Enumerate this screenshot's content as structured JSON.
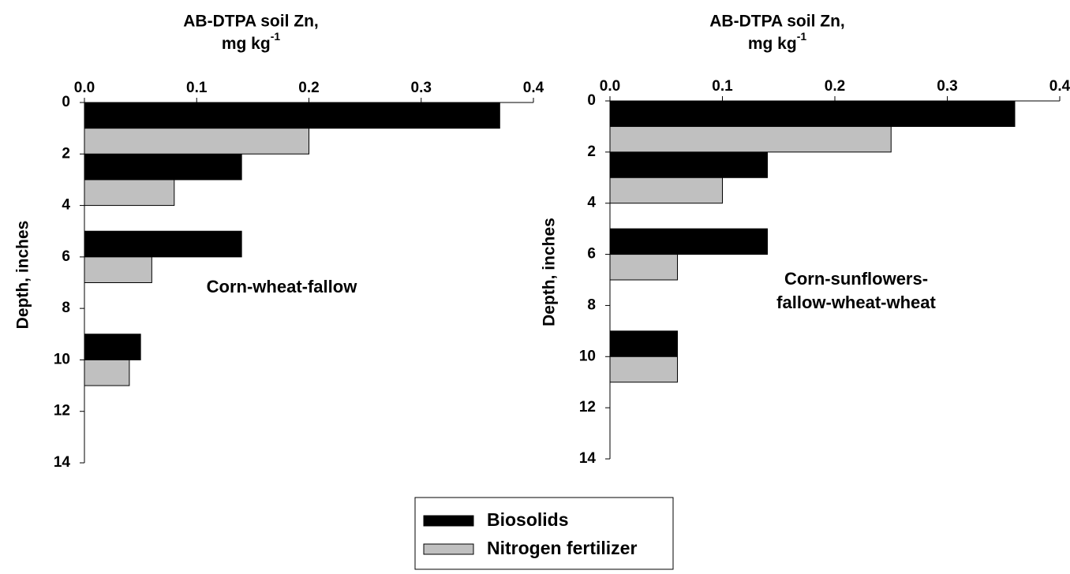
{
  "chart_data": [
    {
      "type": "hbar",
      "xlabel": "AB-DTPA soil Zn,",
      "xlabel_unit": "mg kg",
      "xlabel_unit_sup": "-1",
      "ylabel": "Depth, inches",
      "annotation": [
        "Corn-wheat-fallow"
      ],
      "xlim": [
        0,
        0.4
      ],
      "xticks": [
        {
          "value": 0,
          "label": "0.0"
        },
        0.1,
        0.2,
        0.3,
        0.4
      ],
      "ylim": [
        0,
        14
      ],
      "yticks": [
        0,
        2,
        4,
        6,
        8,
        10,
        12,
        14
      ],
      "y_inverted": true,
      "series": [
        {
          "name": "Biosolids",
          "color": "#000000",
          "y": [
            0.5,
            2.5,
            5.5,
            9.5
          ],
          "values": [
            0.37,
            0.14,
            0.14,
            0.05
          ]
        },
        {
          "name": "Nitrogen fertilizer",
          "color": "#c0c0c0",
          "y": [
            1.5,
            3.5,
            6.5,
            10.5
          ],
          "values": [
            0.2,
            0.08,
            0.06,
            0.04
          ]
        }
      ]
    },
    {
      "type": "hbar",
      "xlabel": "AB-DTPA soil Zn,",
      "xlabel_unit": "mg kg",
      "xlabel_unit_sup": "-1",
      "ylabel": "Depth, inches",
      "annotation": [
        "Corn-sunflowers-",
        "fallow-wheat-wheat"
      ],
      "xlim": [
        0,
        0.4
      ],
      "xticks": [
        {
          "value": 0,
          "label": "0.0"
        },
        0.1,
        0.2,
        0.3,
        0.4
      ],
      "ylim": [
        0,
        14
      ],
      "yticks": [
        0,
        2,
        4,
        6,
        8,
        10,
        12,
        14
      ],
      "y_inverted": true,
      "series": [
        {
          "color": "#000000",
          "y": [
            0.5,
            2.5,
            5.5,
            9.5
          ],
          "values": [
            0.36,
            0.14,
            0.14,
            0.06
          ]
        },
        {
          "color": "#c0c0c0",
          "y": [
            1.5,
            3.5,
            6.5,
            10.5
          ],
          "values": [
            0.25,
            0.1,
            0.06,
            0.06
          ]
        }
      ]
    }
  ]
}
